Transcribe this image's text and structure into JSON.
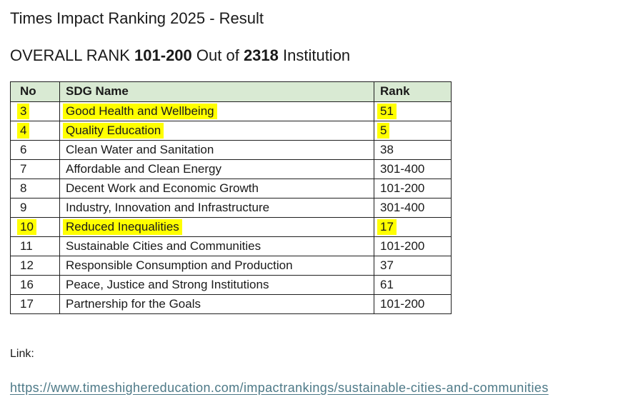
{
  "page": {
    "title": "Times Impact Ranking 2025 - Result",
    "subtitle": {
      "prefix": "OVERALL RANK ",
      "rank": "101-200",
      "middle": " Out of ",
      "total": "2318",
      "suffix": " Institution"
    },
    "link": {
      "label": "Link:",
      "url": "https://www.timeshighereducation.com/impactrankings/sustainable-cities-and-communities"
    }
  },
  "table": {
    "headers": {
      "no": "No",
      "name": "SDG Name",
      "rank": "Rank"
    },
    "rows": [
      {
        "no": "3",
        "name": "Good Health and Wellbeing",
        "rank": "51",
        "highlighted": true
      },
      {
        "no": "4",
        "name": "Quality Education",
        "rank": "5",
        "highlighted": true
      },
      {
        "no": "6",
        "name": "Clean Water and Sanitation",
        "rank": "38",
        "highlighted": false
      },
      {
        "no": "7",
        "name": "Affordable and Clean Energy",
        "rank": "301-400",
        "highlighted": false
      },
      {
        "no": "8",
        "name": "Decent Work and Economic Growth",
        "rank": "101-200",
        "highlighted": false
      },
      {
        "no": "9",
        "name": "Industry, Innovation and Infrastructure",
        "rank": "301-400",
        "highlighted": false
      },
      {
        "no": "10",
        "name": "Reduced Inequalities",
        "rank": "17",
        "highlighted": true
      },
      {
        "no": "11",
        "name": "Sustainable Cities and Communities",
        "rank": "101-200",
        "highlighted": false
      },
      {
        "no": "12",
        "name": "Responsible Consumption and Production",
        "rank": "37",
        "highlighted": false
      },
      {
        "no": "16",
        "name": "Peace, Justice and Strong Institutions",
        "rank": "61",
        "highlighted": false
      },
      {
        "no": "17",
        "name": "Partnership for the Goals",
        "rank": "101-200",
        "highlighted": false
      }
    ]
  },
  "colors": {
    "header_bg": "#D9EAD3",
    "highlight": "#FFFF00",
    "link": "#4D7987"
  }
}
